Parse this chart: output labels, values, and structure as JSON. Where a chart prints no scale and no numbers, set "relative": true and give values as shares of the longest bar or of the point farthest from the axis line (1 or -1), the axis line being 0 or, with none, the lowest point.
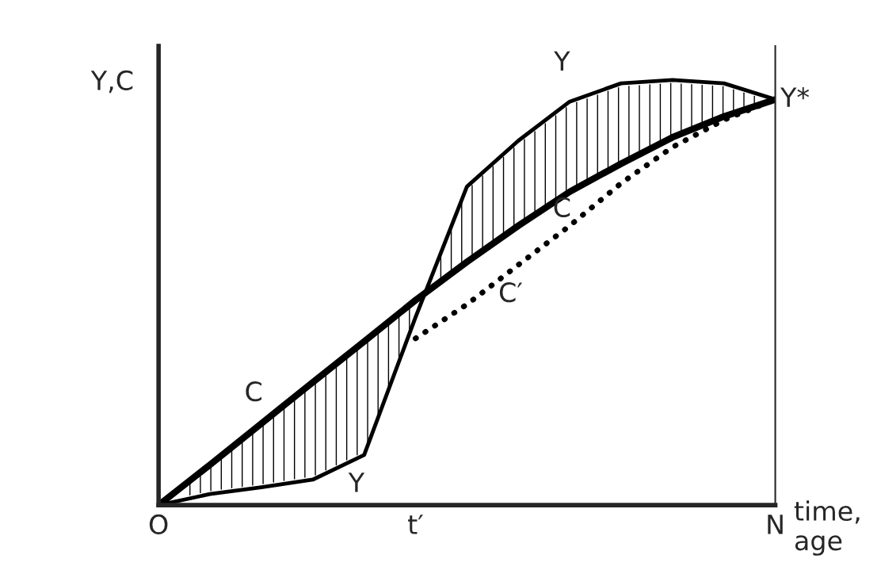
{
  "chart_data": {
    "type": "line",
    "relative": true,
    "ylabel": "Y,C",
    "xlabel": "time, age",
    "categories": [
      "O",
      null,
      null,
      null,
      null,
      "t′",
      null,
      null,
      null,
      null,
      null,
      null,
      "N"
    ],
    "series": [
      {
        "name": "C",
        "color": "#000000",
        "line_style": "solid",
        "values": [
          0,
          0.095,
          0.192,
          0.289,
          0.385,
          0.482,
          0.572,
          0.657,
          0.737,
          0.803,
          0.865,
          0.914,
          0.954
        ]
      },
      {
        "name": "Y",
        "color": "#000000",
        "line_style": "solid",
        "values": [
          0,
          0.026,
          0.042,
          0.06,
          0.118,
          0.442,
          0.749,
          0.857,
          0.949,
          0.992,
          1,
          0.992,
          0.954
        ]
      },
      {
        "name": "C′",
        "color": "#000000",
        "line_style": "dotted",
        "values": [
          null,
          null,
          null,
          null,
          null,
          0.392,
          0.472,
          0.565,
          0.657,
          0.757,
          0.842,
          0.906,
          0.954
        ]
      }
    ],
    "annotations": [
      {
        "text": "Y*",
        "x": "N",
        "y": 0.954
      }
    ],
    "marker": "none",
    "grid": false,
    "legend": false
  }
}
